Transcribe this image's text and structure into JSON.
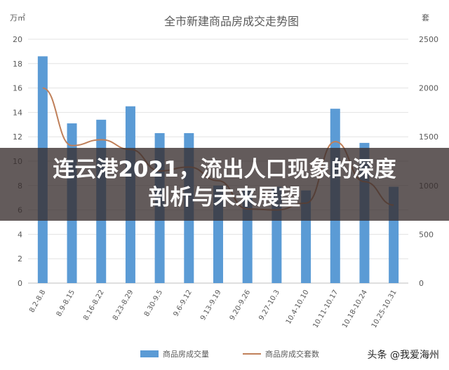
{
  "chart_data": {
    "type": "bar",
    "title": "全市新建商品房成交走势图",
    "y_left_unit": "万㎡",
    "y_right_unit": "套",
    "ylim_left": [
      0,
      20
    ],
    "ylim_right": [
      0,
      2500
    ],
    "y_left_ticks": [
      "0",
      "2",
      "4",
      "6",
      "8",
      "10",
      "12",
      "14",
      "16",
      "18",
      "20"
    ],
    "y_right_ticks": [
      "0",
      "500",
      "1000",
      "1500",
      "2000",
      "2500"
    ],
    "categories": [
      "8.2-8.8",
      "8.9-8.15",
      "8.16-8.22",
      "8.23-8.29",
      "8.30-9.5",
      "9.6-9.12",
      "9.13-9.19",
      "9.20-9.26",
      "9.27-10.3",
      "10.4-10.10",
      "10.11-10.17",
      "10.18-10.24",
      "10.25-10.31"
    ],
    "series": [
      {
        "name": "商品房成交量",
        "type": "bar",
        "axis": "left",
        "color": "#5B9BD5",
        "values": [
          18.6,
          13.1,
          13.4,
          14.5,
          12.3,
          12.3,
          8.0,
          7.7,
          7.9,
          7.6,
          14.3,
          11.5,
          7.9
        ]
      },
      {
        "name": "商品房成交套数",
        "type": "line",
        "axis": "right",
        "color": "#C0805A",
        "values": [
          2000,
          1410,
          1470,
          1370,
          1150,
          1190,
          1050,
          760,
          750,
          820,
          1450,
          1040,
          800
        ]
      }
    ],
    "legend_position": "bottom",
    "grid": true
  },
  "overlay": {
    "line1": "连云港2021，流出人口现象的深度",
    "line2": "剖析与未来展望"
  },
  "watermark": "头条 @我爱海州"
}
